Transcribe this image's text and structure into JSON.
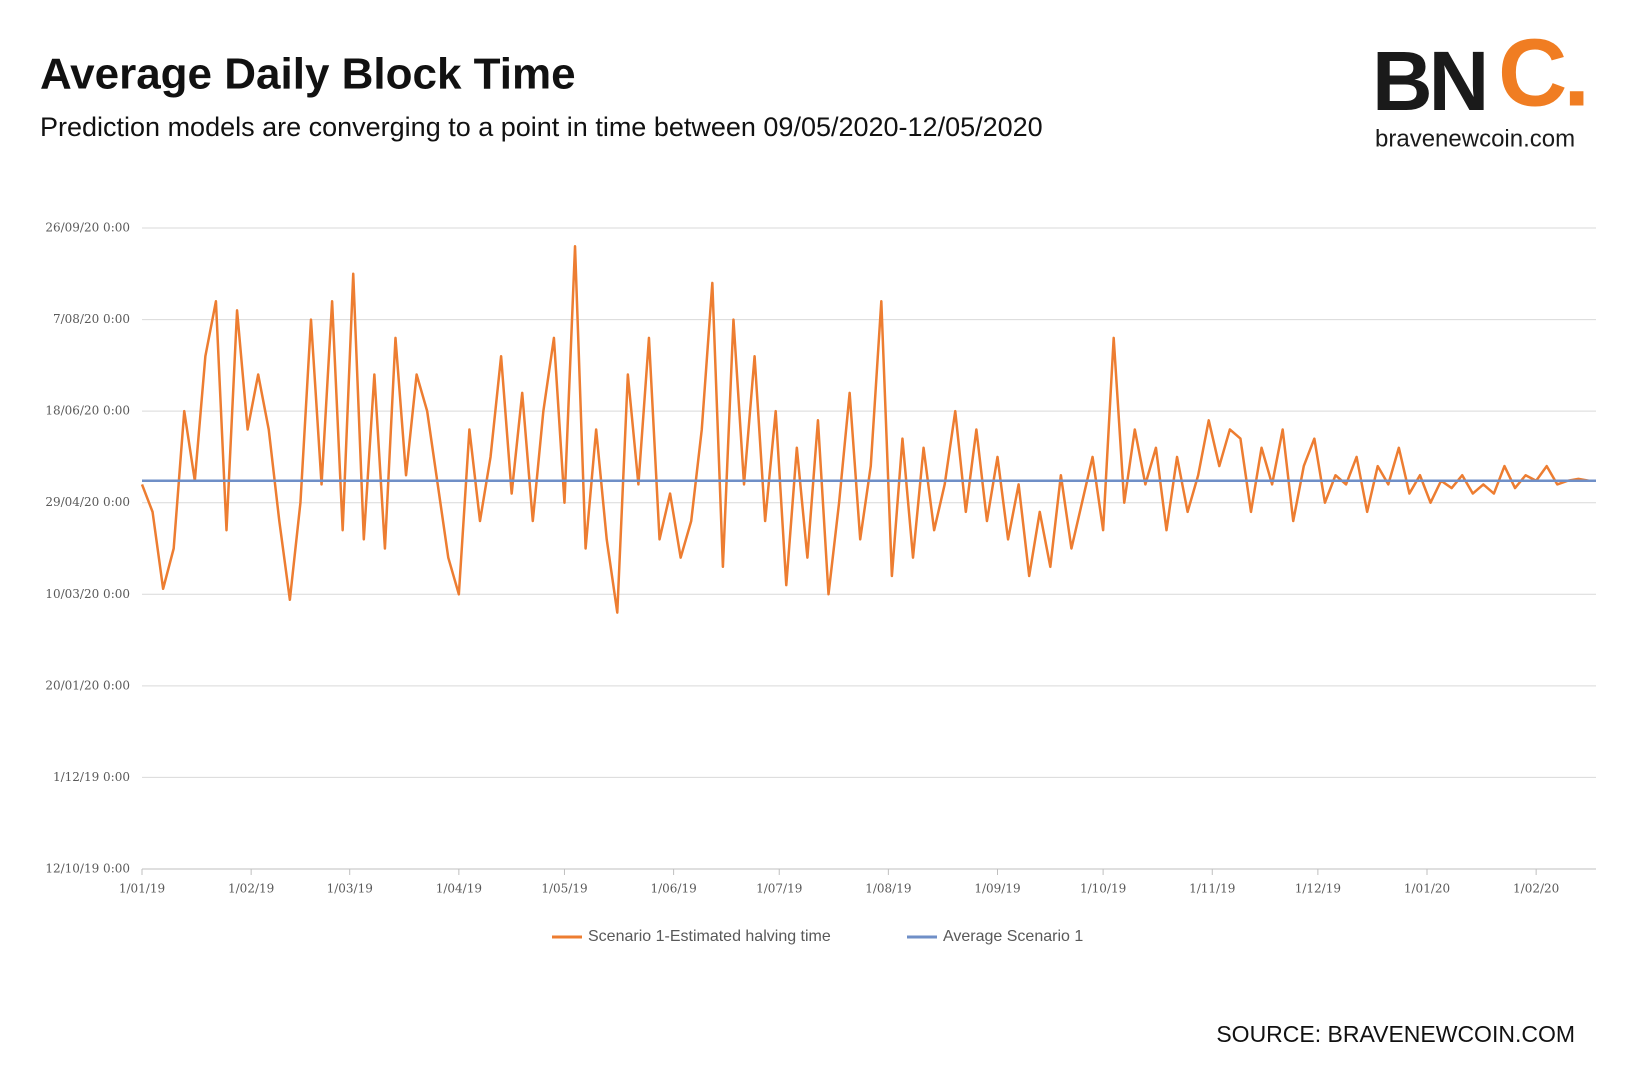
{
  "chart_data": {
    "type": "line",
    "title": "Average Daily Block Time",
    "subtitle": "Prediction models are converging to a point in time between 09/05/2020-12/05/2020",
    "logo": {
      "main": "BN",
      "accent": "C.",
      "site": "bravenewcoin.com"
    },
    "source": "SOURCE: BRAVENEWCOIN.COM",
    "legend": "bottom",
    "grid": true,
    "xlim": [
      43466,
      43879
    ],
    "xticks": [
      {
        "value": 43466,
        "label": "1/01/19"
      },
      {
        "value": 43497,
        "label": "1/02/19"
      },
      {
        "value": 43525,
        "label": "1/03/19"
      },
      {
        "value": 43556,
        "label": "1/04/19"
      },
      {
        "value": 43586,
        "label": "1/05/19"
      },
      {
        "value": 43617,
        "label": "1/06/19"
      },
      {
        "value": 43647,
        "label": "1/07/19"
      },
      {
        "value": 43678,
        "label": "1/08/19"
      },
      {
        "value": 43709,
        "label": "1/09/19"
      },
      {
        "value": 43739,
        "label": "1/10/19"
      },
      {
        "value": 43770,
        "label": "1/11/19"
      },
      {
        "value": 43800,
        "label": "1/12/19"
      },
      {
        "value": 43831,
        "label": "1/01/20"
      },
      {
        "value": 43862,
        "label": "1/02/20"
      }
    ],
    "ylim": [
      43750,
      44100
    ],
    "yticks": [
      {
        "value": 43750,
        "label": "12/10/19 0:00"
      },
      {
        "value": 43800,
        "label": "1/12/19 0:00"
      },
      {
        "value": 43850,
        "label": "20/01/20 0:00"
      },
      {
        "value": 43900,
        "label": "10/03/20 0:00"
      },
      {
        "value": 43950,
        "label": "29/04/20 0:00"
      },
      {
        "value": 44000,
        "label": "18/06/20 0:00"
      },
      {
        "value": 44050,
        "label": "7/08/20 0:00"
      },
      {
        "value": 44100,
        "label": "26/09/20 0:00"
      }
    ],
    "series": [
      {
        "name": "Scenario 1-Estimated halving time",
        "color": "#ed7d31",
        "x": [
          43466,
          43469,
          43472,
          43475,
          43478,
          43481,
          43484,
          43487,
          43490,
          43493,
          43496,
          43499,
          43502,
          43505,
          43508,
          43511,
          43514,
          43517,
          43520,
          43523,
          43526,
          43529,
          43532,
          43535,
          43538,
          43541,
          43544,
          43547,
          43550,
          43553,
          43556,
          43559,
          43562,
          43565,
          43568,
          43571,
          43574,
          43577,
          43580,
          43583,
          43586,
          43589,
          43592,
          43595,
          43598,
          43601,
          43604,
          43607,
          43610,
          43613,
          43616,
          43619,
          43622,
          43625,
          43628,
          43631,
          43634,
          43637,
          43640,
          43643,
          43646,
          43649,
          43652,
          43655,
          43658,
          43661,
          43664,
          43667,
          43670,
          43673,
          43676,
          43679,
          43682,
          43685,
          43688,
          43691,
          43694,
          43697,
          43700,
          43703,
          43706,
          43709,
          43712,
          43715,
          43718,
          43721,
          43724,
          43727,
          43730,
          43733,
          43736,
          43739,
          43742,
          43745,
          43748,
          43751,
          43754,
          43757,
          43760,
          43763,
          43766,
          43769,
          43772,
          43775,
          43778,
          43781,
          43784,
          43787,
          43790,
          43793,
          43796,
          43799,
          43802,
          43805,
          43808,
          43811,
          43814,
          43817,
          43820,
          43823,
          43826,
          43829,
          43832,
          43835,
          43838,
          43841,
          43844,
          43847,
          43850,
          43853,
          43856,
          43859,
          43862,
          43865,
          43868,
          43871,
          43874,
          43877
        ],
        "values": [
          43960,
          43945,
          43903,
          43925,
          44000,
          43962,
          44030,
          44060,
          43935,
          44055,
          43990,
          44020,
          43990,
          43940,
          43897,
          43950,
          44050,
          43960,
          44060,
          43935,
          44075,
          43930,
          44020,
          43925,
          44040,
          43965,
          44020,
          44000,
          43960,
          43920,
          43900,
          43990,
          43940,
          43975,
          44030,
          43955,
          44010,
          43940,
          44000,
          44040,
          43950,
          44090,
          43925,
          43990,
          43930,
          43890,
          44020,
          43960,
          44040,
          43930,
          43955,
          43920,
          43940,
          43990,
          44070,
          43915,
          44050,
          43960,
          44030,
          43940,
          44000,
          43905,
          43980,
          43920,
          43995,
          43900,
          43950,
          44010,
          43930,
          43970,
          44060,
          43910,
          43985,
          43920,
          43980,
          43935,
          43960,
          44000,
          43945,
          43990,
          43940,
          43975,
          43930,
          43960,
          43910,
          43945,
          43915,
          43965,
          43925,
          43950,
          43975,
          43935,
          44040,
          43950,
          43990,
          43960,
          43980,
          43935,
          43975,
          43945,
          43965,
          43995,
          43970,
          43990,
          43985,
          43945,
          43980,
          43960,
          43990,
          43940,
          43970,
          43985,
          43950,
          43965,
          43960,
          43975,
          43945,
          43970,
          43960,
          43980,
          43955,
          43965,
          43950,
          43962,
          43958,
          43965,
          43955,
          43960,
          43955,
          43970,
          43958,
          43965,
          43962,
          43970,
          43960,
          43962,
          43963,
          43962
        ]
      },
      {
        "name": "Average Scenario 1",
        "color": "#6f8fc7",
        "x": [
          43466,
          43879
        ],
        "values": [
          43962,
          43962
        ]
      }
    ]
  }
}
